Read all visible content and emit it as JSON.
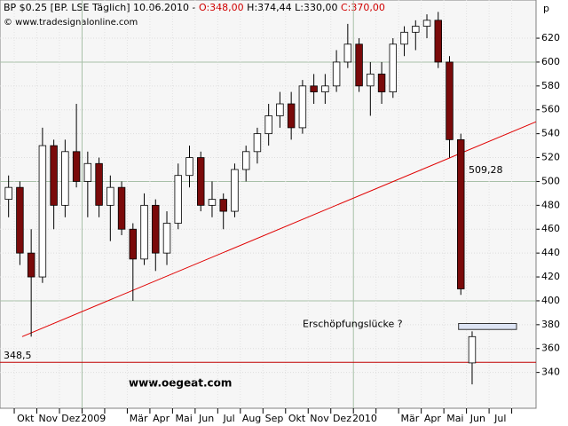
{
  "chart_data": {
    "type": "candlestick",
    "title": "BP $0.25 [BP. LSE  Täglich] 10.06.2010 -",
    "quote": [
      "O:348,00",
      "H:374,44",
      "L:330,00",
      "C:370,00"
    ],
    "source": "© www.tradesignalonline.com",
    "unit": "p",
    "categories": [
      null,
      "Okt",
      null,
      "Nov",
      null,
      "Dez",
      null,
      "2009",
      null,
      null,
      null,
      "Mär",
      null,
      "Apr",
      null,
      "Mai",
      null,
      "Jun",
      null,
      "Jul",
      null,
      "Aug",
      null,
      "Sep",
      null,
      "Okt",
      null,
      "Nov",
      null,
      "Dez",
      null,
      "2010",
      null,
      null,
      null,
      "Mär",
      null,
      "Apr",
      null,
      "Mai",
      null,
      "Jun",
      null,
      "Jul",
      null,
      null
    ],
    "open": [
      485,
      495,
      440,
      420,
      530,
      480,
      525,
      500,
      515,
      480,
      495,
      460,
      435,
      480,
      440,
      465,
      505,
      520,
      480,
      485,
      475,
      510,
      525,
      540,
      555,
      565,
      545,
      580,
      575,
      580,
      600,
      615,
      580,
      590,
      575,
      615,
      625,
      630,
      635,
      600,
      535,
      348,
      null,
      null,
      null,
      null
    ],
    "high": [
      505,
      500,
      460,
      545,
      535,
      535,
      565,
      525,
      520,
      505,
      500,
      465,
      490,
      485,
      475,
      515,
      530,
      525,
      500,
      490,
      515,
      530,
      545,
      565,
      575,
      575,
      585,
      590,
      590,
      610,
      632,
      620,
      600,
      600,
      620,
      630,
      635,
      640,
      642,
      605,
      540,
      374.44,
      null,
      null,
      null,
      null
    ],
    "low": [
      470,
      430,
      370,
      415,
      460,
      470,
      495,
      470,
      470,
      450,
      455,
      400,
      430,
      425,
      430,
      460,
      495,
      475,
      470,
      460,
      470,
      500,
      515,
      530,
      545,
      535,
      540,
      565,
      565,
      575,
      595,
      575,
      555,
      565,
      570,
      605,
      610,
      620,
      595,
      520,
      405,
      330,
      null,
      null,
      null,
      null
    ],
    "close": [
      495,
      440,
      420,
      530,
      480,
      525,
      500,
      515,
      480,
      495,
      460,
      435,
      480,
      440,
      465,
      505,
      520,
      480,
      485,
      475,
      510,
      525,
      540,
      555,
      565,
      545,
      580,
      575,
      580,
      600,
      615,
      580,
      590,
      575,
      615,
      625,
      630,
      635,
      600,
      535,
      410,
      370,
      null,
      null,
      null,
      null
    ],
    "up_color": "#ffffff",
    "down_color": "#7a0a0a",
    "ylim": [
      310,
      652
    ],
    "yticks": [
      340,
      360,
      380,
      400,
      420,
      440,
      460,
      480,
      500,
      520,
      540,
      560,
      580,
      600,
      620
    ],
    "grid": true,
    "trendline": {
      "start": 370,
      "end": 550,
      "color": "#e00000"
    },
    "trend_label": {
      "text": "509,28",
      "value": 509.28
    },
    "support": {
      "value": 348.5,
      "label": "348,5",
      "color": "#c00000"
    },
    "gap_box": {
      "high": 381,
      "low": 376
    },
    "annotation": "Erschöpfungslücke  ?",
    "watermark": "www.oegeat.com"
  }
}
